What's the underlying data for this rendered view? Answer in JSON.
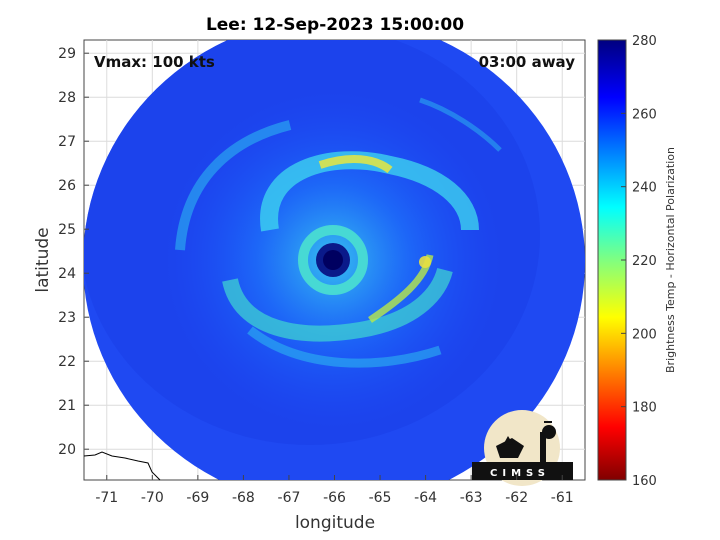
{
  "title": "Lee: 12-Sep-2023 15:00:00",
  "annotations": {
    "vmax": "Vmax: 100 kts",
    "time_away": "03:00 away"
  },
  "axes": {
    "xlabel": "longitude",
    "ylabel": "latitude",
    "xlim": [
      -71.5,
      -60.5
    ],
    "ylim": [
      19.3,
      29.3
    ],
    "xticks": [
      -71,
      -70,
      -69,
      -68,
      -67,
      -66,
      -65,
      -64,
      -63,
      -62,
      -61
    ],
    "yticks": [
      20,
      21,
      22,
      23,
      24,
      25,
      26,
      27,
      28,
      29
    ],
    "grid": true
  },
  "colorbar": {
    "label": "Brightness Temp - Horizontal Polarization",
    "range": [
      160,
      280
    ],
    "ticks": [
      160,
      180,
      200,
      220,
      240,
      260,
      280
    ],
    "colormap": "jet"
  },
  "storm": {
    "center_lon": -66.0,
    "center_lat": 24.4
  },
  "logo": {
    "text": "CIMSS"
  }
}
